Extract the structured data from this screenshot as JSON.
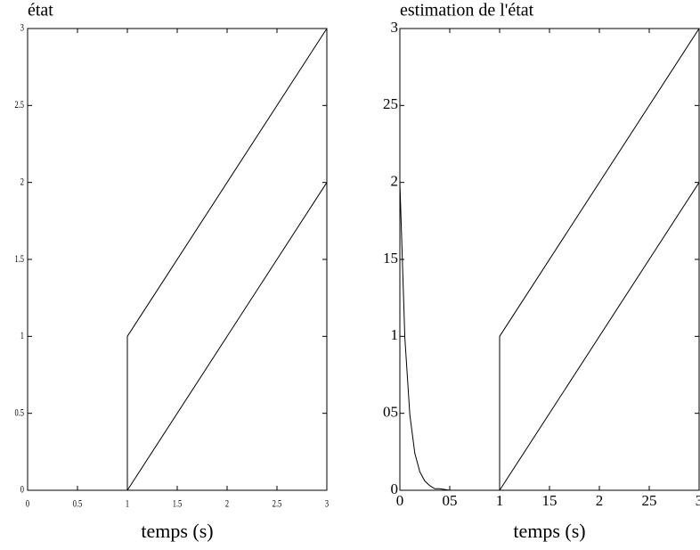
{
  "chart_data": [
    {
      "type": "line",
      "title": "état",
      "x_label": "temps (s)",
      "xlim": [
        0,
        3
      ],
      "ylim": [
        0,
        3
      ],
      "xticks": [
        0,
        0.5,
        1,
        1.5,
        2,
        2.5,
        3
      ],
      "yticks": [
        0,
        0.5,
        1,
        1.5,
        2,
        2.5,
        3
      ],
      "series": [
        {
          "color": "#000000",
          "x": [
            0,
            1,
            1,
            3
          ],
          "values": [
            0,
            0,
            1,
            3
          ]
        },
        {
          "color": "#000000",
          "x": [
            1,
            3
          ],
          "values": [
            0,
            2
          ]
        }
      ]
    },
    {
      "type": "line",
      "title": "estimation de l'état",
      "x_label": "temps (s)",
      "xlim": [
        0,
        3
      ],
      "ylim": [
        0,
        3
      ],
      "xticks": [
        0,
        {
          "value": 0.5,
          "label": "05"
        },
        1,
        {
          "value": 1.5,
          "label": "15"
        },
        2,
        {
          "value": 2.5,
          "label": "25"
        },
        3
      ],
      "yticks": [
        0,
        {
          "value": 0.5,
          "label": "05"
        },
        1,
        {
          "value": 1.5,
          "label": "15"
        },
        2,
        {
          "value": 2.5,
          "label": "25"
        },
        3
      ],
      "series": [
        {
          "color": "#000000",
          "x": [
            0,
            0.05,
            0.1,
            0.15,
            0.2,
            0.25,
            0.3,
            0.35,
            0.4,
            0.5,
            0.6,
            1,
            1,
            3
          ],
          "values": [
            2,
            0.99,
            0.49,
            0.24,
            0.12,
            0.06,
            0.03,
            0.01,
            0.01,
            0,
            0,
            0,
            1,
            3
          ]
        },
        {
          "color": "#000000",
          "x": [
            1,
            3
          ],
          "values": [
            0,
            2
          ]
        }
      ]
    }
  ]
}
